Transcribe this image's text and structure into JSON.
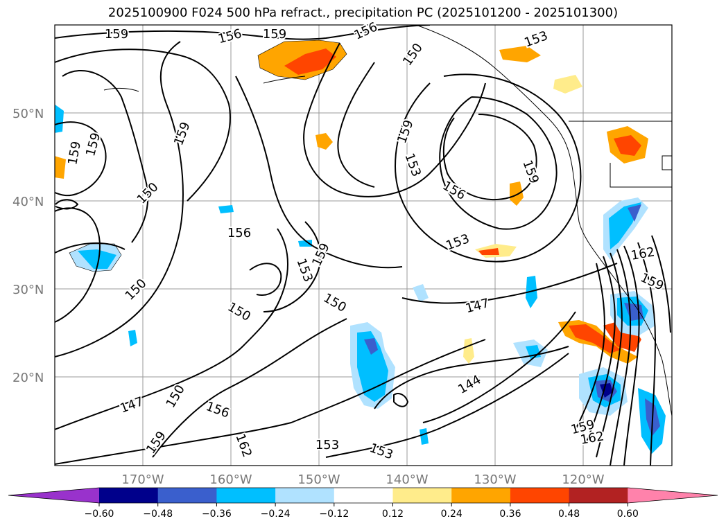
{
  "title": "2025100900 F024 500 hPa refract., precipitation PC (2025101200 - 2025101300)",
  "lat_labels": [
    "50°N",
    "40°N",
    "30°N",
    "20°N"
  ],
  "lon_labels": [
    "170°W",
    "160°W",
    "150°W",
    "140°W",
    "130°W",
    "120°W"
  ],
  "colorbar": {
    "ticks": [
      "−0.60",
      "−0.48",
      "−0.36",
      "−0.24",
      "−0.12",
      "0.12",
      "0.24",
      "0.36",
      "0.48",
      "0.60"
    ],
    "colors": [
      "#9932cc",
      "#00008b",
      "#3a5fcd",
      "#00bfff",
      "#b0e2ff",
      "#ffffff",
      "#ffec8b",
      "#ffa500",
      "#ff4500",
      "#b22222",
      "#ff82ab"
    ]
  },
  "contour_labels": [
    "159",
    "156",
    "159",
    "156",
    "150",
    "153",
    "159",
    "159",
    "159",
    "156",
    "153",
    "150",
    "156",
    "159",
    "153",
    "159",
    "150",
    "153",
    "150",
    "150",
    "147",
    "162",
    "159",
    "150",
    "147",
    "156",
    "144",
    "159",
    "162",
    "153",
    "153",
    "159",
    "162",
    "159"
  ]
}
